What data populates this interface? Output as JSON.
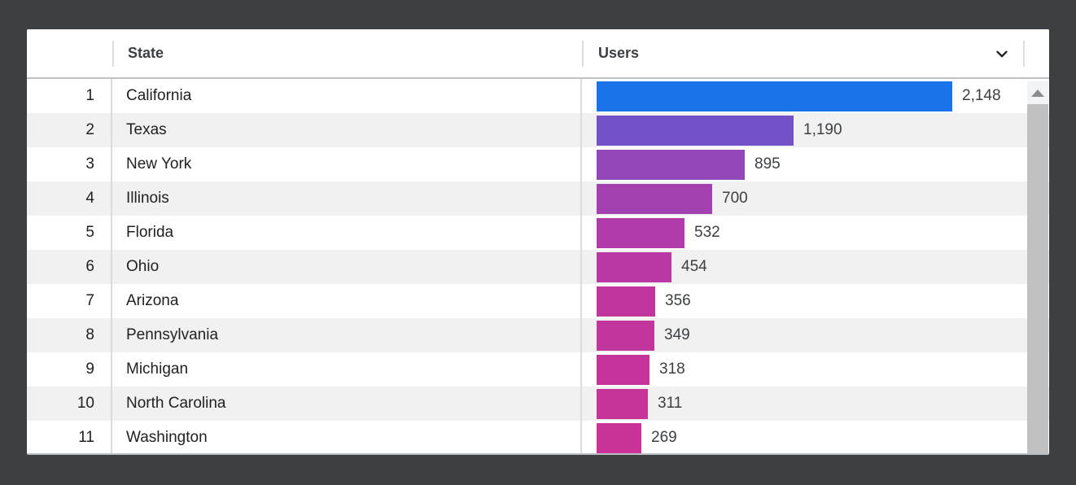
{
  "panel": {
    "header": {
      "state_label": "State",
      "users_label": "Users"
    },
    "rows": [
      {
        "rank": "1",
        "state": "California",
        "users": "2,148",
        "value": 2148,
        "bar_color": "#1a73e8"
      },
      {
        "rank": "2",
        "state": "Texas",
        "users": "1,190",
        "value": 1190,
        "bar_color": "#7351c8"
      },
      {
        "rank": "3",
        "state": "New York",
        "users": "895",
        "value": 895,
        "bar_color": "#9347b8"
      },
      {
        "rank": "4",
        "state": "Illinois",
        "users": "700",
        "value": 700,
        "bar_color": "#a441b1"
      },
      {
        "rank": "5",
        "state": "Florida",
        "users": "532",
        "value": 532,
        "bar_color": "#b03baa"
      },
      {
        "rank": "6",
        "state": "Ohio",
        "users": "454",
        "value": 454,
        "bar_color": "#ba38a4"
      },
      {
        "rank": "7",
        "state": "Arizona",
        "users": "356",
        "value": 356,
        "bar_color": "#c1369e"
      },
      {
        "rank": "8",
        "state": "Pennsylvania",
        "users": "349",
        "value": 349,
        "bar_color": "#c2359d"
      },
      {
        "rank": "9",
        "state": "Michigan",
        "users": "318",
        "value": 318,
        "bar_color": "#c5349b"
      },
      {
        "rank": "10",
        "state": "North Carolina",
        "users": "311",
        "value": 311,
        "bar_color": "#c6349a"
      },
      {
        "rank": "11",
        "state": "Washington",
        "users": "269",
        "value": 269,
        "bar_color": "#cb3399"
      }
    ],
    "icons": {
      "header_dropdown": "chevron-down",
      "scroll_up": "triangle-up"
    },
    "colors": {
      "background": "#3c4043",
      "panel": "#ffffff",
      "zebra_row": "#f1f1f1",
      "divider": "#dadce0",
      "header_border": "#bdc1c6",
      "bar_max_color": "#1a73e8",
      "bar_min_color": "#cb3399",
      "scroll_track": "#f1f3f4",
      "scroll_thumb": "#c1c1c1"
    }
  },
  "chart_data": {
    "type": "bar",
    "orientation": "horizontal",
    "title": "",
    "xlabel": "Users",
    "ylabel": "State",
    "categories": [
      "California",
      "Texas",
      "New York",
      "Illinois",
      "Florida",
      "Ohio",
      "Arizona",
      "Pennsylvania",
      "Michigan",
      "North Carolina",
      "Washington"
    ],
    "values": [
      2148,
      1190,
      895,
      700,
      532,
      454,
      356,
      349,
      318,
      311,
      269
    ],
    "value_labels": [
      "2,148",
      "1,190",
      "895",
      "700",
      "532",
      "454",
      "356",
      "349",
      "318",
      "311",
      "269"
    ],
    "xlim": [
      0,
      2148
    ],
    "grid": false,
    "legend": false,
    "bar_colors": [
      "#1a73e8",
      "#7351c8",
      "#9347b8",
      "#a441b1",
      "#b03baa",
      "#ba38a4",
      "#c1369e",
      "#c2359d",
      "#c5349b",
      "#c6349a",
      "#cb3399"
    ]
  }
}
